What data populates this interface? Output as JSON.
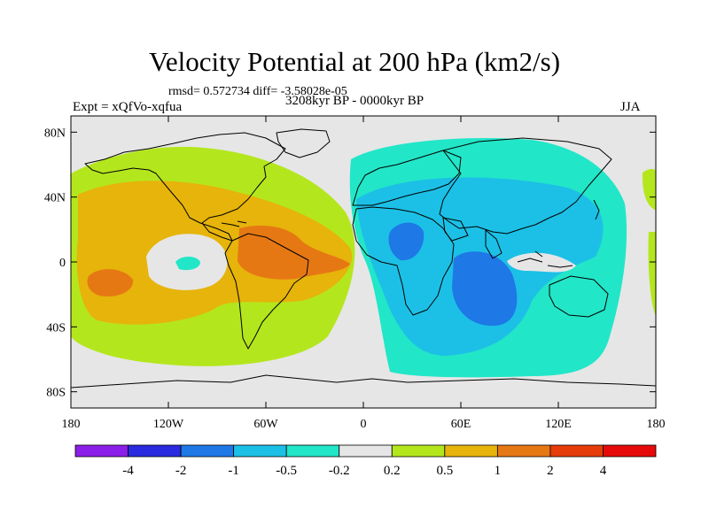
{
  "title": "Velocity Potential at 200 hPa (km2/s)",
  "stats_line": "rmsd= 0.572734 diff= -3.58028e-05",
  "experiment": "Expt = xQfVo-xqfua",
  "period": "3208kyr BP - 0000kyr BP",
  "season": "JJA",
  "map": {
    "lat_ticks": [
      {
        "lat": 80,
        "label": "80N"
      },
      {
        "lat": 40,
        "label": "40N"
      },
      {
        "lat": 0,
        "label": "0"
      },
      {
        "lat": -40,
        "label": "40S"
      },
      {
        "lat": -80,
        "label": "80S"
      }
    ],
    "lon_ticks": [
      {
        "lon": -180,
        "label": "180"
      },
      {
        "lon": -120,
        "label": "120W"
      },
      {
        "lon": -60,
        "label": "60W"
      },
      {
        "lon": 0,
        "label": "0"
      },
      {
        "lon": 60,
        "label": "60E"
      },
      {
        "lon": 120,
        "label": "120E"
      },
      {
        "lon": 180,
        "label": "180"
      }
    ]
  },
  "colorbar": {
    "colors": [
      "#8b1ee8",
      "#2a2ae0",
      "#1e78e6",
      "#1cc0e6",
      "#22e6c8",
      "#e6e6e6",
      "#b4e61e",
      "#e6b40a",
      "#e67814",
      "#e63c0a",
      "#e60a0a"
    ],
    "labels": [
      "-4",
      "-2",
      "-1",
      "-0.5",
      "-0.2",
      "0.2",
      "0.5",
      "1",
      "2",
      "4"
    ]
  }
}
